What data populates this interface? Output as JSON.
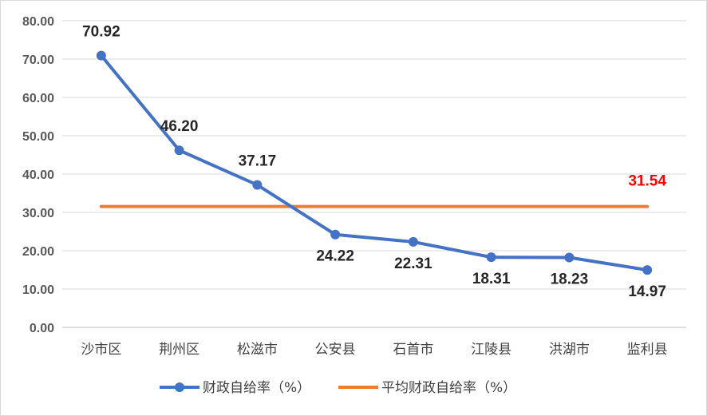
{
  "chart_data": {
    "type": "line",
    "categories": [
      "沙市区",
      "荆州区",
      "松滋市",
      "公安县",
      "石首市",
      "江陵县",
      "洪湖市",
      "监利县"
    ],
    "series": [
      {
        "name": "财政自给率（%）",
        "values": [
          70.92,
          46.2,
          37.17,
          24.22,
          22.31,
          18.31,
          18.23,
          14.97
        ],
        "labels": [
          "70.92",
          "46.20",
          "37.17",
          "24.22",
          "22.31",
          "18.31",
          "18.23",
          "14.97"
        ],
        "color": "#4472c4"
      },
      {
        "name": "平均财政自给率（%）",
        "values": [
          31.54,
          31.54,
          31.54,
          31.54,
          31.54,
          31.54,
          31.54,
          31.54
        ],
        "label": "31.54",
        "label_color": "#ff0000",
        "color": "#ed7d31"
      }
    ],
    "ylim": [
      0,
      80
    ],
    "yticks": [
      "0.00",
      "10.00",
      "20.00",
      "30.00",
      "40.00",
      "50.00",
      "60.00",
      "70.00",
      "80.00"
    ],
    "grid": true,
    "legend": "bottom",
    "label_positions": [
      "above",
      "above",
      "above",
      "below",
      "below",
      "below",
      "below",
      "below"
    ]
  }
}
